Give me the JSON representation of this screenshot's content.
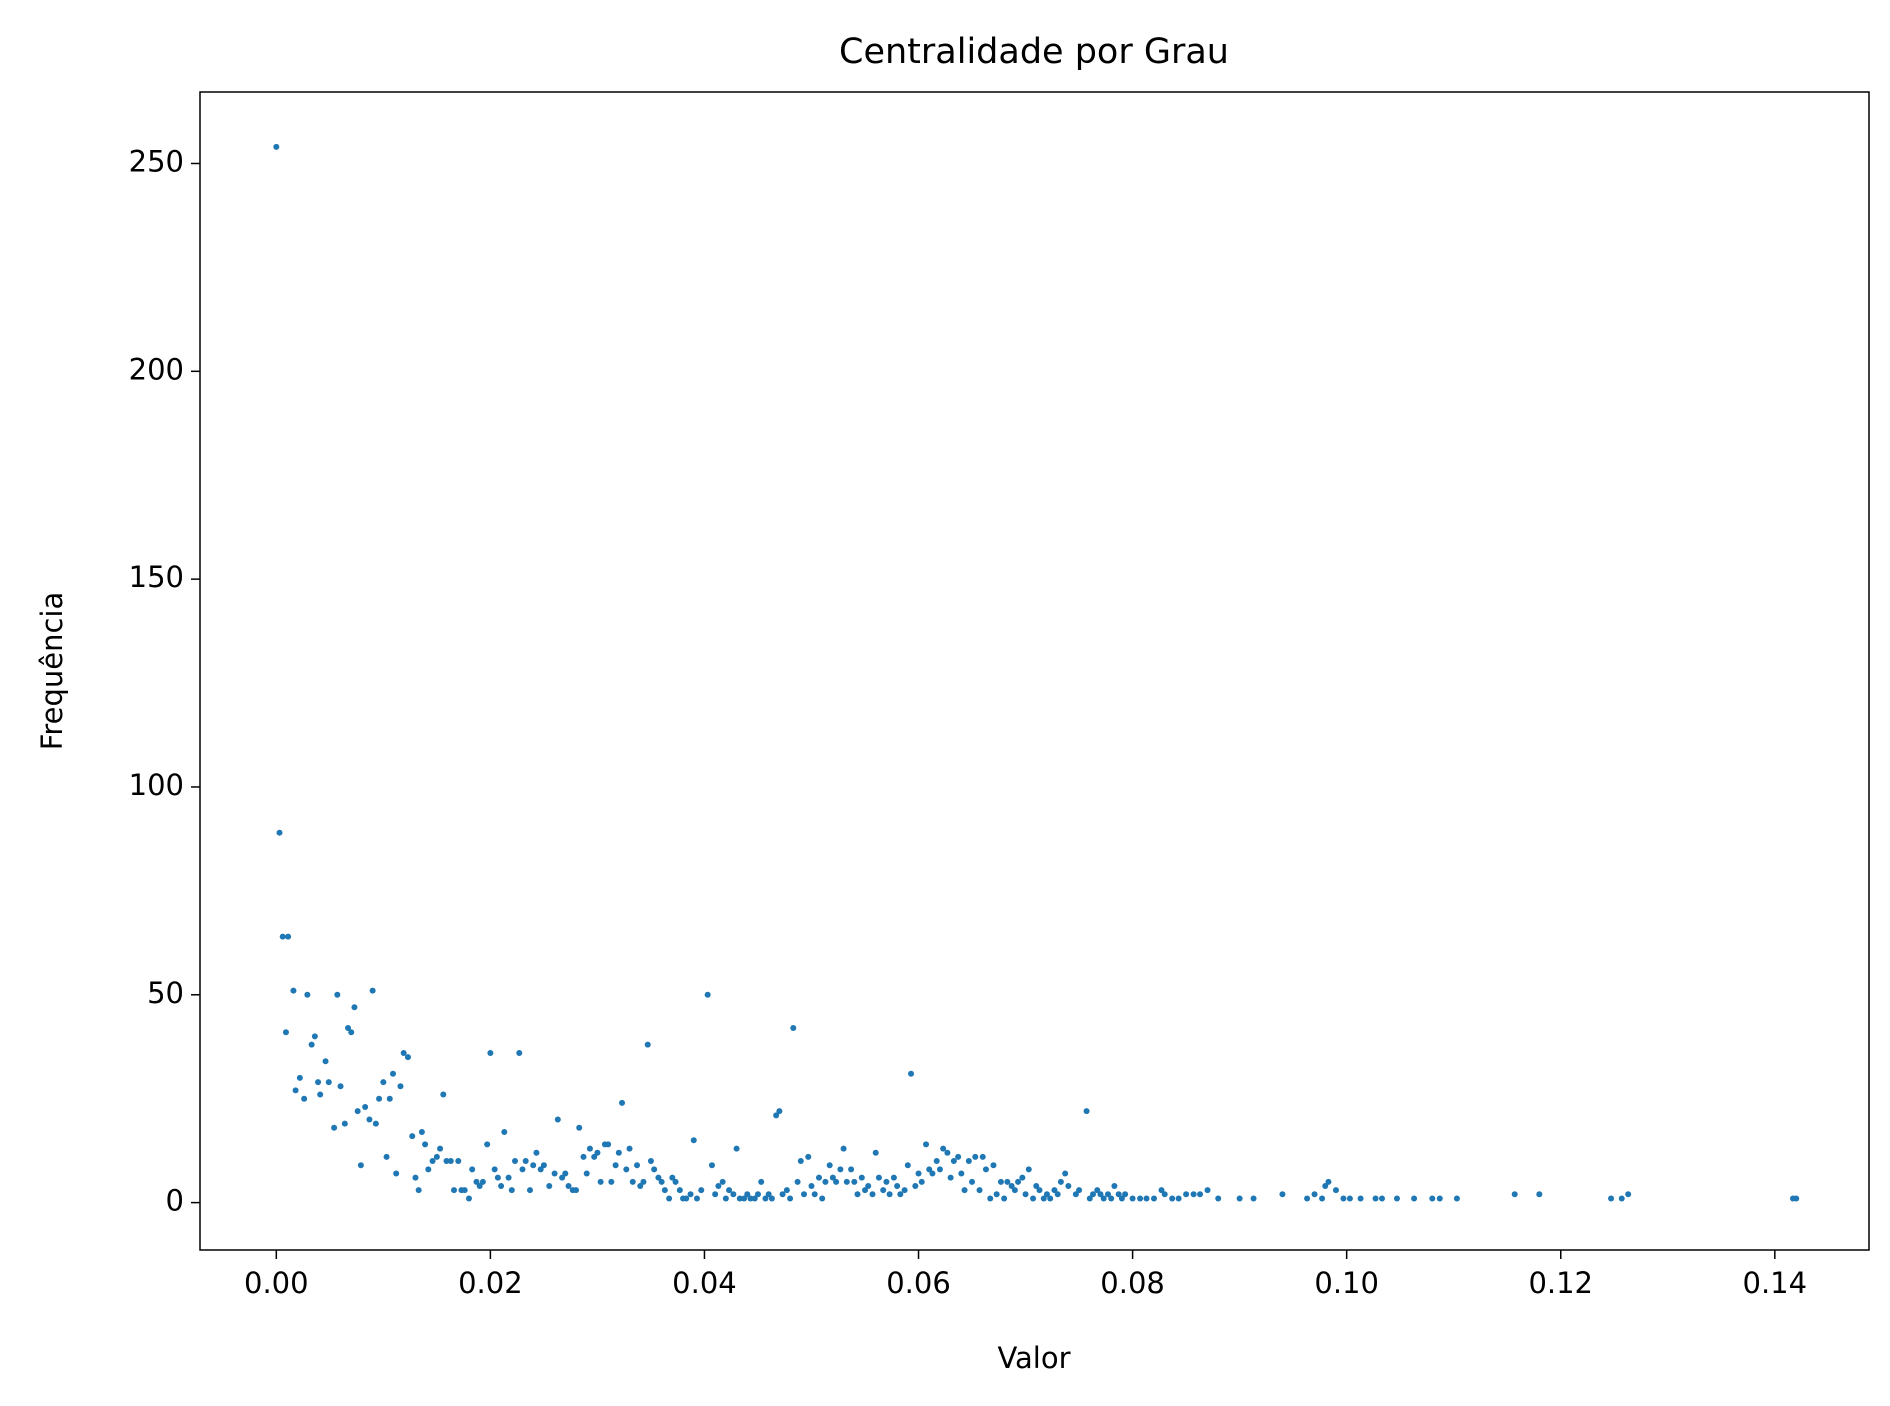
{
  "chart_data": {
    "type": "scatter",
    "title": "Centralidade por Grau",
    "xlabel": "Valor",
    "ylabel": "Frequência",
    "color": "#1f77b4",
    "xlim": [
      -0.00713,
      0.1488
    ],
    "ylim": [
      -11.4,
      267.2
    ],
    "xticks": [
      {
        "value": 0,
        "label": "0.00"
      },
      {
        "value": 0.02,
        "label": "0.02"
      },
      {
        "value": 0.04,
        "label": "0.04"
      },
      {
        "value": 0.06,
        "label": "0.06"
      },
      {
        "value": 0.08,
        "label": "0.08"
      },
      {
        "value": 0.1,
        "label": "0.10"
      },
      {
        "value": 0.12,
        "label": "0.12"
      },
      {
        "value": 0.14,
        "label": "0.14"
      }
    ],
    "yticks": [
      0,
      50,
      100,
      150,
      200,
      250
    ],
    "x": [
      0.0,
      0.0003,
      0.0006,
      0.0011,
      0.0009,
      0.0016,
      0.0018,
      0.0022,
      0.0026,
      0.0029,
      0.0033,
      0.0036,
      0.0039,
      0.0041,
      0.0046,
      0.0049,
      0.0054,
      0.0057,
      0.006,
      0.0064,
      0.0067,
      0.007,
      0.0073,
      0.0076,
      0.0079,
      0.0083,
      0.0087,
      0.009,
      0.0093,
      0.0096,
      0.01,
      0.0103,
      0.0106,
      0.0109,
      0.0112,
      0.0116,
      0.0119,
      0.0123,
      0.0127,
      0.013,
      0.0133,
      0.0136,
      0.0139,
      0.0142,
      0.0146,
      0.015,
      0.0153,
      0.0156,
      0.0159,
      0.0163,
      0.0166,
      0.017,
      0.0173,
      0.0176,
      0.018,
      0.0183,
      0.0187,
      0.019,
      0.0193,
      0.0197,
      0.02,
      0.0204,
      0.0207,
      0.021,
      0.0213,
      0.0217,
      0.022,
      0.0223,
      0.0227,
      0.023,
      0.0233,
      0.0237,
      0.024,
      0.0243,
      0.0247,
      0.025,
      0.0255,
      0.026,
      0.0263,
      0.0267,
      0.027,
      0.0273,
      0.0277,
      0.028,
      0.0283,
      0.0287,
      0.029,
      0.0293,
      0.0297,
      0.03,
      0.0303,
      0.0307,
      0.031,
      0.0313,
      0.0317,
      0.032,
      0.0323,
      0.0327,
      0.033,
      0.0333,
      0.0337,
      0.034,
      0.0343,
      0.0347,
      0.035,
      0.0353,
      0.0357,
      0.036,
      0.0363,
      0.0367,
      0.037,
      0.0373,
      0.0377,
      0.038,
      0.0383,
      0.0387,
      0.039,
      0.0393,
      0.0397,
      0.0403,
      0.0407,
      0.041,
      0.0413,
      0.0417,
      0.042,
      0.0423,
      0.0427,
      0.043,
      0.0433,
      0.0437,
      0.044,
      0.0443,
      0.0447,
      0.045,
      0.0453,
      0.0457,
      0.046,
      0.0463,
      0.0467,
      0.047,
      0.0473,
      0.0477,
      0.048,
      0.0483,
      0.0487,
      0.049,
      0.0493,
      0.0497,
      0.05,
      0.0503,
      0.0507,
      0.051,
      0.0513,
      0.0517,
      0.052,
      0.0523,
      0.0527,
      0.053,
      0.0533,
      0.0537,
      0.054,
      0.0543,
      0.0547,
      0.055,
      0.0553,
      0.0557,
      0.056,
      0.0563,
      0.0567,
      0.057,
      0.0573,
      0.0577,
      0.058,
      0.0583,
      0.0587,
      0.059,
      0.0593,
      0.0597,
      0.06,
      0.0603,
      0.0607,
      0.061,
      0.0613,
      0.0617,
      0.062,
      0.0623,
      0.0627,
      0.063,
      0.0633,
      0.0637,
      0.064,
      0.0643,
      0.0647,
      0.065,
      0.0653,
      0.0657,
      0.066,
      0.0663,
      0.0667,
      0.067,
      0.0673,
      0.0677,
      0.068,
      0.0683,
      0.0687,
      0.069,
      0.0693,
      0.0697,
      0.07,
      0.0703,
      0.0707,
      0.071,
      0.0713,
      0.0717,
      0.072,
      0.0723,
      0.0727,
      0.073,
      0.0733,
      0.0737,
      0.074,
      0.0747,
      0.0757,
      0.075,
      0.076,
      0.0763,
      0.0767,
      0.077,
      0.0773,
      0.0777,
      0.078,
      0.0783,
      0.0787,
      0.079,
      0.0793,
      0.08,
      0.0807,
      0.0813,
      0.082,
      0.0827,
      0.083,
      0.0837,
      0.0843,
      0.085,
      0.0857,
      0.0863,
      0.087,
      0.088,
      0.09,
      0.0913,
      0.094,
      0.0963,
      0.097,
      0.0977,
      0.098,
      0.0983,
      0.099,
      0.0997,
      0.1003,
      0.1013,
      0.1027,
      0.1033,
      0.1047,
      0.1063,
      0.108,
      0.1087,
      0.1103,
      0.1157,
      0.118,
      0.1247,
      0.1257,
      0.1263,
      0.1417,
      0.142
    ],
    "values": [
      254,
      89,
      64,
      64,
      41,
      51,
      27,
      30,
      25,
      50,
      38,
      40,
      29,
      26,
      34,
      29,
      18,
      50,
      28,
      19,
      42,
      41,
      47,
      22,
      9,
      23,
      20,
      51,
      19,
      25,
      29,
      11,
      25,
      31,
      7,
      28,
      36,
      35,
      16,
      6,
      3,
      17,
      14,
      8,
      10,
      11,
      13,
      26,
      10,
      10,
      3,
      10,
      3,
      3,
      1,
      8,
      5,
      4,
      5,
      14,
      36,
      8,
      6,
      4,
      17,
      6,
      3,
      10,
      36,
      8,
      10,
      3,
      9,
      12,
      8,
      9,
      4,
      7,
      20,
      6,
      7,
      4,
      3,
      3,
      18,
      11,
      7,
      13,
      11,
      12,
      5,
      14,
      14,
      5,
      9,
      12,
      24,
      8,
      13,
      5,
      9,
      4,
      5,
      38,
      10,
      8,
      6,
      5,
      3,
      1,
      6,
      5,
      3,
      1,
      1,
      2,
      15,
      1,
      3,
      50,
      9,
      2,
      4,
      5,
      1,
      3,
      2,
      13,
      1,
      1,
      2,
      1,
      1,
      2,
      5,
      1,
      2,
      1,
      21,
      22,
      2,
      3,
      1,
      42,
      5,
      10,
      2,
      11,
      4,
      2,
      6,
      1,
      5,
      9,
      6,
      5,
      8,
      13,
      5,
      8,
      5,
      2,
      6,
      3,
      4,
      2,
      12,
      6,
      3,
      5,
      2,
      6,
      4,
      2,
      3,
      9,
      31,
      4,
      7,
      5,
      14,
      8,
      7,
      10,
      8,
      13,
      12,
      6,
      10,
      11,
      7,
      3,
      10,
      5,
      11,
      3,
      11,
      8,
      1,
      9,
      2,
      5,
      1,
      5,
      4,
      3,
      5,
      6,
      2,
      8,
      1,
      4,
      3,
      1,
      2,
      1,
      3,
      2,
      5,
      7,
      4,
      2,
      22,
      3,
      1,
      2,
      3,
      2,
      1,
      2,
      1,
      4,
      2,
      1,
      2,
      1,
      1,
      1,
      1,
      3,
      2,
      1,
      1,
      2,
      2,
      2,
      3,
      1,
      1,
      1,
      2,
      1,
      2,
      1,
      4,
      5,
      3,
      1,
      1,
      1,
      1,
      1,
      1,
      1,
      1,
      1,
      1,
      2,
      2,
      1,
      1,
      2,
      1,
      1
    ]
  }
}
